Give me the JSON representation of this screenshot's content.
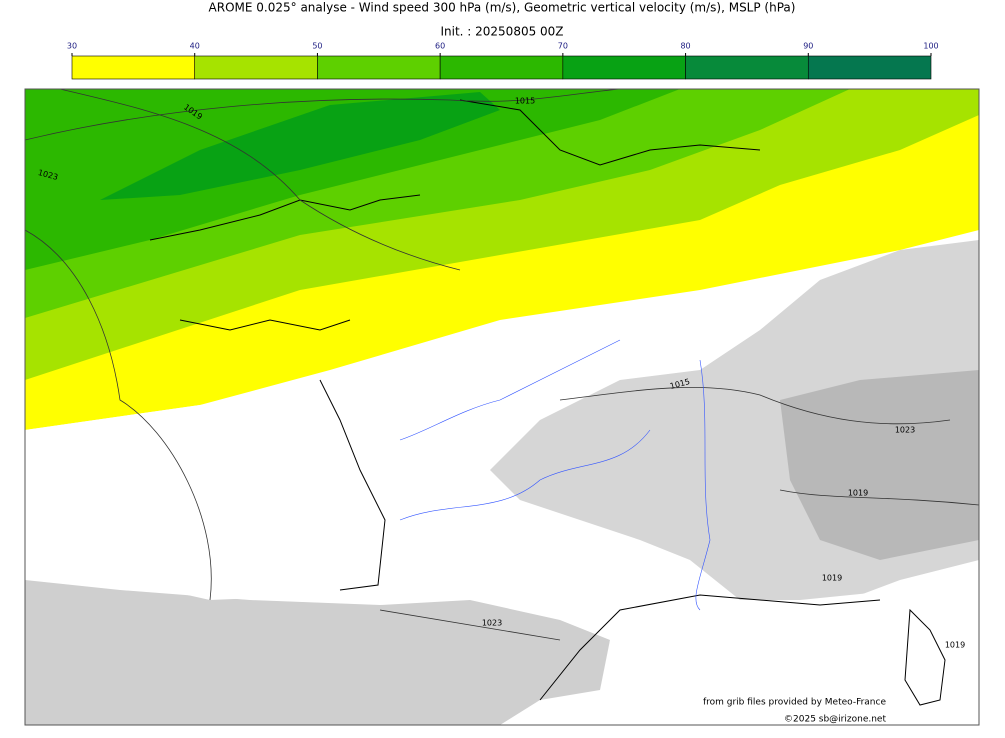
{
  "header": {
    "title": "AROME 0.025° analyse - Wind speed 300 hPa (m/s), Geometric vertical velocity (m/s), MSLP (hPa)",
    "subtitle": "Init. : 20250805 00Z"
  },
  "colorbar": {
    "ticks": [
      30,
      40,
      50,
      60,
      70,
      80,
      90,
      100
    ],
    "colors": [
      "#ffff00",
      "#a6e300",
      "#5ed000",
      "#2cb800",
      "#08a214",
      "#078a3a",
      "#05774f"
    ]
  },
  "isobar_labels": [
    "1019",
    "1015",
    "1023",
    "1015",
    "1023",
    "1019",
    "1019",
    "1023",
    "1019"
  ],
  "credits": [
    "from grib files provided by Meteo-France",
    "©2025 sb@irizone.net"
  ]
}
